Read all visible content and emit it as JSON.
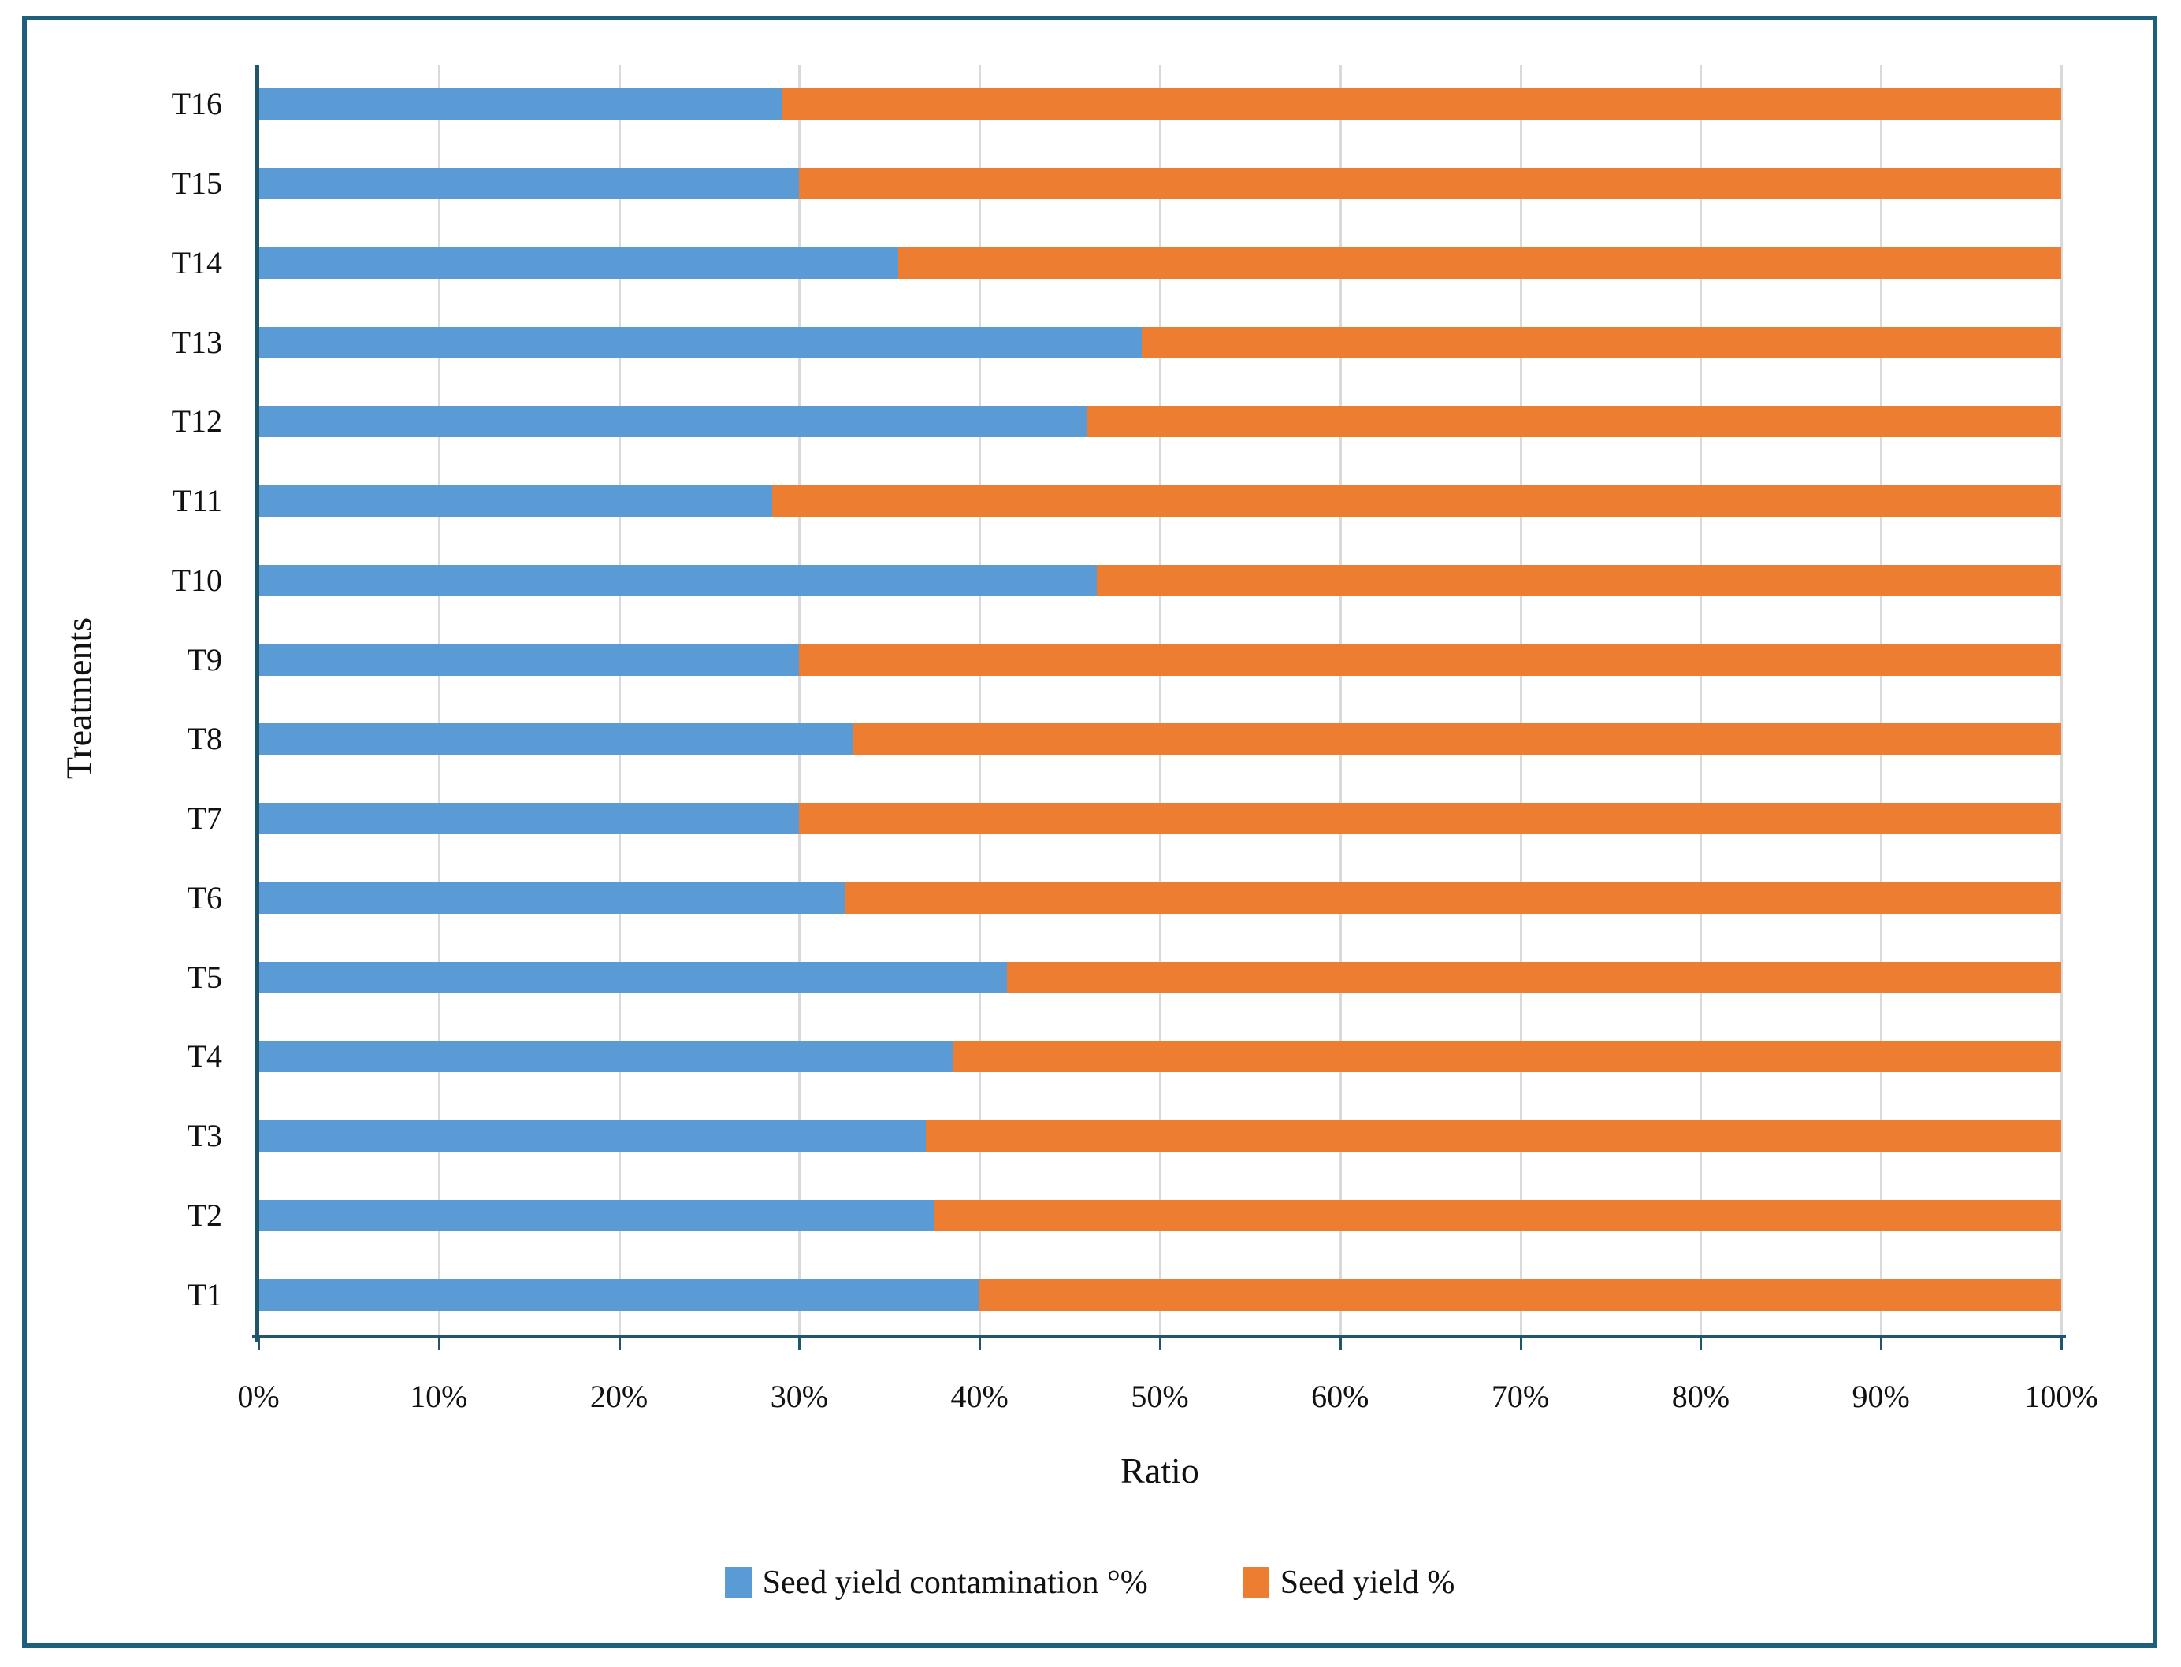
{
  "figure": {
    "border_color": "#1E5F7C",
    "background": "#FFFFFF",
    "axis_color": "#20566B",
    "gridline_color": "#D9D9D9",
    "text_color": "#111111"
  },
  "chart_data": {
    "type": "bar",
    "orientation": "horizontal",
    "stacked": true,
    "title": "",
    "xlabel": "Ratio",
    "ylabel": "Treatments",
    "xlim": [
      0,
      100
    ],
    "x_tick_labels": [
      "0%",
      "10%",
      "20%",
      "30%",
      "40%",
      "50%",
      "60%",
      "70%",
      "80%",
      "90%",
      "100%"
    ],
    "grid": "vertical",
    "legend_position": "bottom",
    "categories": [
      "T1",
      "T2",
      "T3",
      "T4",
      "T5",
      "T6",
      "T7",
      "T8",
      "T9",
      "T10",
      "T11",
      "T12",
      "T13",
      "T14",
      "T15",
      "T16"
    ],
    "series": [
      {
        "name": "Seed yield contamination °%",
        "color": "#5B9BD5",
        "values": [
          40,
          37.5,
          37,
          38.5,
          41.5,
          32.5,
          30,
          33,
          30,
          46.5,
          28.5,
          46,
          49,
          35.5,
          30,
          29
        ]
      },
      {
        "name": "Seed yield %",
        "color": "#ED7D31",
        "values": [
          60,
          62.5,
          63,
          61.5,
          58.5,
          67.5,
          70,
          67,
          70,
          53.5,
          71.5,
          54,
          51,
          64.5,
          70,
          71
        ]
      }
    ]
  }
}
